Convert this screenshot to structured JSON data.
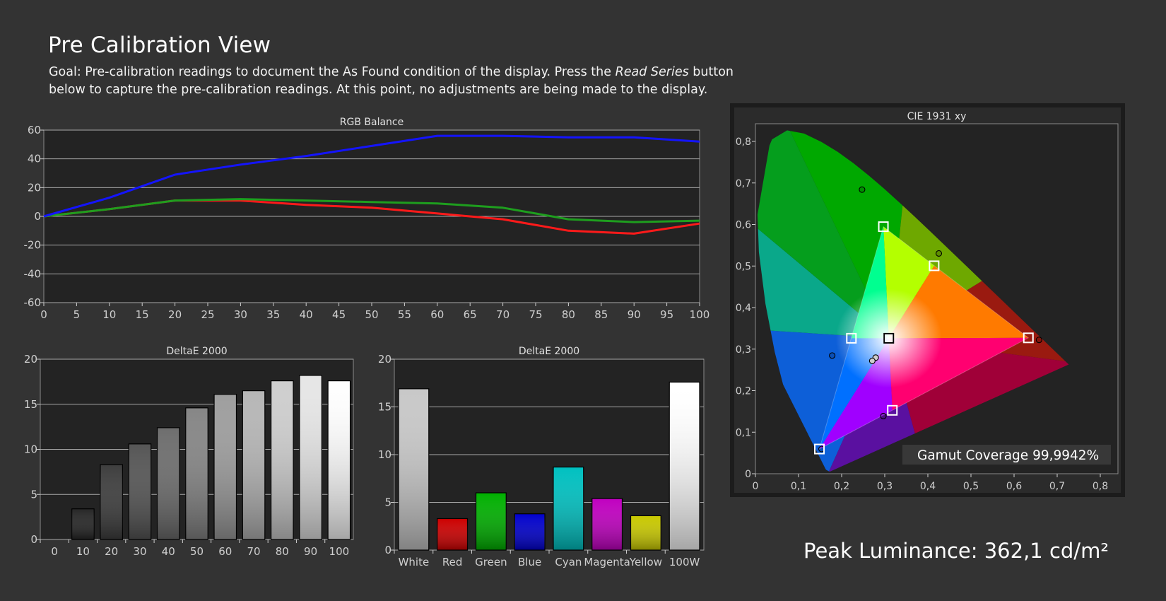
{
  "page": {
    "title": "Pre Calibration View",
    "goal_prefix": "Goal: Pre-calibration readings to document the As Found condition of the display. Press the ",
    "goal_emphasis": "Read Series",
    "goal_suffix": " button below to capture the pre-calibration readings. At this point, no adjustments are being made to the display.",
    "peak_luminance": "Peak Luminance: 362,1 cd/m²"
  },
  "colors": {
    "background": "#333333",
    "plot_background": "#232323",
    "red": "#ff1a1a",
    "green": "#1e9e1e",
    "blue": "#1414ff"
  },
  "chart_data": [
    {
      "id": "rgb_balance",
      "type": "line",
      "title": "RGB Balance",
      "x": [
        0,
        10,
        20,
        30,
        40,
        50,
        60,
        70,
        80,
        90,
        100
      ],
      "xticks": [
        "0",
        "5",
        "10",
        "15",
        "20",
        "25",
        "30",
        "35",
        "40",
        "45",
        "50",
        "55",
        "60",
        "65",
        "70",
        "75",
        "80",
        "85",
        "90",
        "95",
        "100"
      ],
      "yticks": [
        "60",
        "40",
        "20",
        "0",
        "-20",
        "-40",
        "-60"
      ],
      "xlim": [
        0,
        100
      ],
      "ylim": [
        -60,
        60
      ],
      "grid": true,
      "series": [
        {
          "color": "#1414ff",
          "values": [
            0,
            13,
            29,
            36,
            42,
            49,
            56,
            56,
            55,
            55,
            52
          ]
        },
        {
          "color": "#1e9e1e",
          "values": [
            0,
            5,
            11,
            12,
            11,
            10,
            9,
            6,
            -2,
            -4,
            -3
          ]
        },
        {
          "color": "#ff1a1a",
          "values": [
            0,
            5,
            11,
            11,
            8,
            6,
            2,
            -2,
            -10,
            -12,
            -5
          ]
        }
      ]
    },
    {
      "id": "deltae_grayscale",
      "type": "bar",
      "title": "DeltaE 2000",
      "categories": [
        "0",
        "10",
        "20",
        "30",
        "40",
        "50",
        "60",
        "70",
        "80",
        "90",
        "100"
      ],
      "values": [
        0,
        3.4,
        8.3,
        10.6,
        12.4,
        14.6,
        16.1,
        16.5,
        17.6,
        18.2,
        17.6
      ],
      "yticks": [
        "20",
        "15",
        "10",
        "5",
        "0"
      ],
      "ylim": [
        0,
        20
      ],
      "grid": true
    },
    {
      "id": "deltae_colors",
      "type": "bar",
      "title": "DeltaE 2000",
      "categories": [
        "White",
        "Red",
        "Green",
        "Blue",
        "Cyan",
        "Magenta",
        "Yellow",
        "100W"
      ],
      "values": [
        16.9,
        3.3,
        6.0,
        3.8,
        8.7,
        5.4,
        3.6,
        17.6
      ],
      "colors": [
        "#c8c8c8",
        "#cc0000",
        "#00b000",
        "#0000cc",
        "#00c0c0",
        "#c000c0",
        "#c8c800",
        "#ffffff"
      ],
      "yticks": [
        "20",
        "15",
        "10",
        "5",
        "0"
      ],
      "ylim": [
        0,
        20
      ],
      "grid": true
    },
    {
      "id": "cie_1931",
      "type": "scatter",
      "title": "CIE 1931 xy",
      "xticks": [
        "0",
        "0,1",
        "0,2",
        "0,3",
        "0,4",
        "0,5",
        "0,6",
        "0,7",
        "0,8"
      ],
      "yticks": [
        "0,8",
        "0,7",
        "0,6",
        "0,5",
        "0,4",
        "0,3",
        "0,2",
        "0,1",
        "0"
      ],
      "xlim": [
        0,
        0.85
      ],
      "ylim": [
        0,
        0.85
      ],
      "gamut_coverage": "Gamut Coverage 99,9942%",
      "targets": [
        {
          "name": "red",
          "x": 0.64,
          "y": 0.33
        },
        {
          "name": "green",
          "x": 0.3,
          "y": 0.6
        },
        {
          "name": "blue",
          "x": 0.15,
          "y": 0.06
        },
        {
          "name": "cyan",
          "x": 0.225,
          "y": 0.329
        },
        {
          "name": "magenta",
          "x": 0.321,
          "y": 0.154
        },
        {
          "name": "yellow",
          "x": 0.419,
          "y": 0.505
        },
        {
          "name": "white",
          "x": 0.3127,
          "y": 0.329
        }
      ],
      "measured": [
        {
          "name": "red",
          "x": 0.665,
          "y": 0.325
        },
        {
          "name": "green",
          "x": 0.25,
          "y": 0.69
        },
        {
          "name": "blue",
          "x": 0.155,
          "y": 0.06
        },
        {
          "name": "cyan",
          "x": 0.18,
          "y": 0.287
        },
        {
          "name": "magenta",
          "x": 0.3,
          "y": 0.14
        },
        {
          "name": "yellow",
          "x": 0.43,
          "y": 0.535
        },
        {
          "name": "white",
          "x": 0.282,
          "y": 0.282
        },
        {
          "name": "white-2",
          "x": 0.274,
          "y": 0.274
        }
      ]
    }
  ]
}
